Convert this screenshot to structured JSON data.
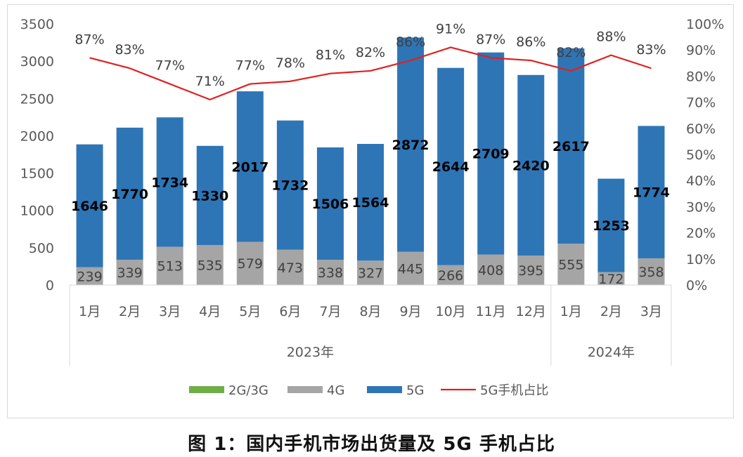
{
  "caption": "图 1：国内手机市场出货量及 5G 手机占比",
  "chart_data": {
    "type": "bar",
    "stacked": true,
    "categories": [
      "1月",
      "2月",
      "3月",
      "4月",
      "5月",
      "6月",
      "7月",
      "8月",
      "9月",
      "10月",
      "11月",
      "12月",
      "1月",
      "2月",
      "3月"
    ],
    "groups": [
      {
        "label": "2023年",
        "count": 12
      },
      {
        "label": "2024年",
        "count": 3
      }
    ],
    "series": [
      {
        "name": "2G/3G",
        "type": "bar",
        "color": "#70ad47",
        "values": [
          0,
          0,
          0,
          0,
          0,
          0,
          0,
          0,
          0,
          0,
          0,
          0,
          0,
          0,
          0
        ]
      },
      {
        "name": "4G",
        "type": "bar",
        "color": "#a5a5a5",
        "values": [
          239,
          339,
          513,
          535,
          579,
          473,
          338,
          327,
          445,
          266,
          408,
          395,
          555,
          172,
          358
        ]
      },
      {
        "name": "5G",
        "type": "bar",
        "color": "#2e75b6",
        "values": [
          1646,
          1770,
          1734,
          1330,
          2017,
          1732,
          1506,
          1564,
          2872,
          2644,
          2709,
          2420,
          2617,
          1253,
          1774
        ]
      },
      {
        "name": "5G手机占比",
        "type": "line",
        "axis": "right",
        "color": "#e02020",
        "values": [
          87,
          83,
          77,
          71,
          77,
          78,
          81,
          82,
          86,
          91,
          87,
          86,
          82,
          88,
          83
        ],
        "labels": [
          "87%",
          "83%",
          "77%",
          "71%",
          "77%",
          "78%",
          "81%",
          "82%",
          "86%",
          "91%",
          "87%",
          "86%",
          "82%",
          "88%",
          "83%"
        ]
      }
    ],
    "y_left": {
      "min": 0,
      "max": 3500,
      "ticks": [
        "0",
        "500",
        "1000",
        "1500",
        "2000",
        "2500",
        "3000",
        "3500"
      ]
    },
    "y_right": {
      "min": 0,
      "max": 100,
      "ticks": [
        "0%",
        "10%",
        "20%",
        "30%",
        "40%",
        "50%",
        "60%",
        "70%",
        "80%",
        "90%",
        "100%"
      ]
    },
    "grid": false,
    "legend_position": "bottom"
  }
}
